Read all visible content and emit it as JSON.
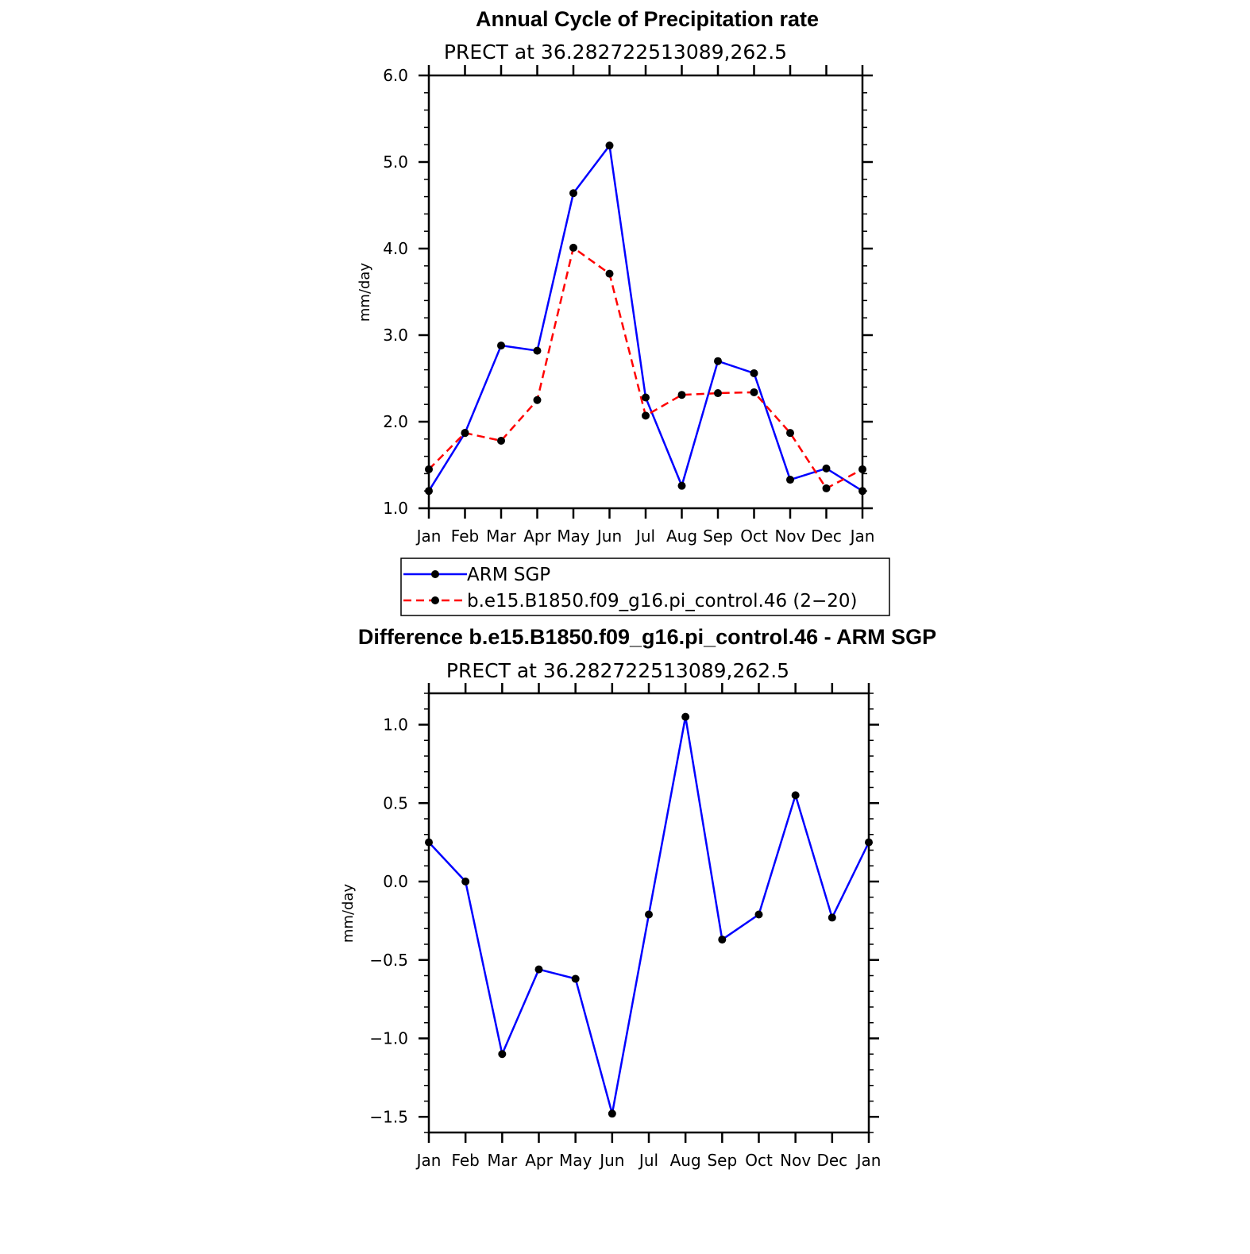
{
  "chart_data": [
    {
      "type": "line",
      "title": "Annual Cycle of Precipitation rate",
      "subtitle": "PRECT at 36.282722513089,262.5",
      "ylabel": "mm/day",
      "ylim": [
        1.0,
        6.0
      ],
      "yticks": [
        "1.0",
        "2.0",
        "3.0",
        "4.0",
        "5.0",
        "6.0"
      ],
      "categories": [
        "Jan",
        "Feb",
        "Mar",
        "Apr",
        "May",
        "Jun",
        "Jul",
        "Aug",
        "Sep",
        "Oct",
        "Nov",
        "Dec",
        "Jan"
      ],
      "series": [
        {
          "name": "ARM SGP",
          "color": "#0000ff",
          "dash": "solid",
          "values": [
            1.2,
            1.87,
            2.88,
            2.82,
            4.64,
            5.19,
            2.28,
            1.26,
            2.7,
            2.56,
            1.33,
            1.46,
            1.2
          ]
        },
        {
          "name": "b.e15.B1850.f09_g16.pi_control.46 (2−20)",
          "color": "#ff0000",
          "dash": "dashed",
          "values": [
            1.45,
            1.87,
            1.78,
            2.25,
            4.01,
            3.71,
            2.07,
            2.31,
            2.33,
            2.34,
            1.87,
            1.23,
            1.45
          ]
        }
      ],
      "legend": "below",
      "grid": false
    },
    {
      "type": "line",
      "title": "Difference b.e15.B1850.f09_g16.pi_control.46 - ARM SGP",
      "subtitle": "PRECT at 36.282722513089,262.5",
      "ylabel": "mm/day",
      "ylim": [
        -1.6,
        1.2
      ],
      "yticks": [
        "−1.5",
        "−1.0",
        "−0.5",
        "0.0",
        "0.5",
        "1.0"
      ],
      "categories": [
        "Jan",
        "Feb",
        "Mar",
        "Apr",
        "May",
        "Jun",
        "Jul",
        "Aug",
        "Sep",
        "Oct",
        "Nov",
        "Dec",
        "Jan"
      ],
      "series": [
        {
          "color": "#0000ff",
          "dash": "solid",
          "values": [
            0.25,
            0.0,
            -1.1,
            -0.56,
            -0.62,
            -1.48,
            -0.21,
            1.05,
            -0.37,
            -0.21,
            0.55,
            -0.23,
            0.25
          ]
        }
      ],
      "grid": false
    }
  ]
}
